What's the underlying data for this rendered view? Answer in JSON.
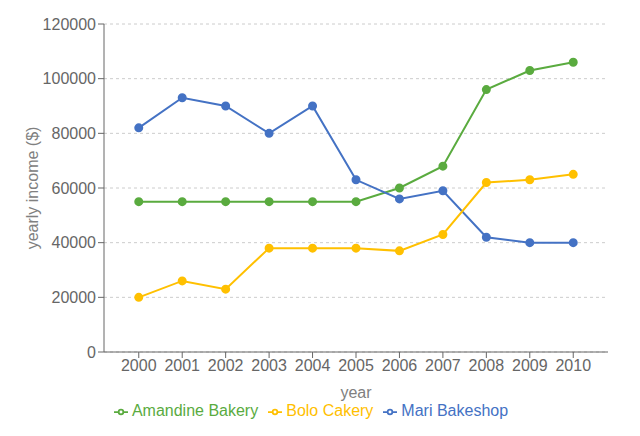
{
  "chart_data": {
    "type": "line",
    "xlabel": "year",
    "ylabel": "yearly income ($)",
    "x": [
      2000,
      2001,
      2002,
      2003,
      2004,
      2005,
      2006,
      2007,
      2008,
      2009,
      2010
    ],
    "series": [
      {
        "name": "Amandine Bakery",
        "color": "#5aab3f",
        "values": [
          55000,
          55000,
          55000,
          55000,
          55000,
          55000,
          60000,
          68000,
          96000,
          103000,
          106000
        ]
      },
      {
        "name": "Mari Bakeshop",
        "color": "#4472c4",
        "values": [
          82000,
          93000,
          90000,
          80000,
          90000,
          63000,
          56000,
          59000,
          42000,
          40000,
          40000
        ]
      },
      {
        "name": "Bolo Cakery",
        "color": "#ffc000",
        "values": [
          20000,
          26000,
          23000,
          38000,
          38000,
          38000,
          37000,
          43000,
          62000,
          63000,
          65000
        ]
      }
    ],
    "xlim": [
      1999.2,
      2010.8
    ],
    "xticks": [
      2000,
      2001,
      2002,
      2003,
      2004,
      2005,
      2006,
      2007,
      2008,
      2009,
      2010
    ],
    "ylim": [
      0,
      120000
    ],
    "yticks": [
      0,
      20000,
      40000,
      60000,
      80000,
      100000,
      120000
    ],
    "grid": "y",
    "legend": "bottom",
    "marker": "circle",
    "line_style": "solid"
  }
}
